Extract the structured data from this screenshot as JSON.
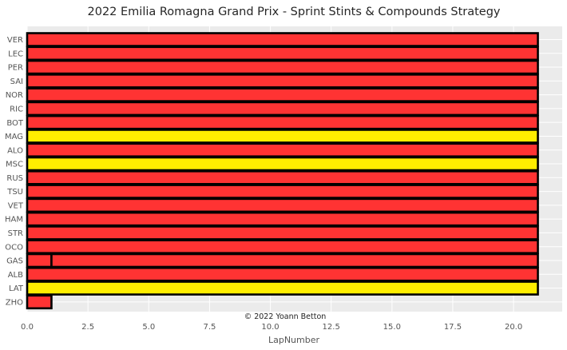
{
  "chart_data": {
    "type": "bar",
    "orientation": "horizontal-stacked",
    "title": "2022 Emilia Romagna Grand Prix - Sprint Stints & Compounds Strategy",
    "xlabel": "LapNumber",
    "ylabel": "",
    "xlim": [
      0,
      22
    ],
    "x_ticks": [
      "0.0",
      "2.5",
      "5.0",
      "7.5",
      "10.0",
      "12.5",
      "15.0",
      "17.5",
      "20.0"
    ],
    "x_tick_values": [
      0,
      2.5,
      5,
      7.5,
      10,
      12.5,
      15,
      17.5,
      20
    ],
    "grid": true,
    "annotation": "© 2022 Yoann Betton",
    "compound_colors": {
      "SOFT": "#ff3333",
      "MEDIUM": "#ffee00"
    },
    "drivers": [
      {
        "driver": "VER",
        "stints": [
          {
            "compound": "SOFT",
            "start": 0,
            "end": 21
          }
        ]
      },
      {
        "driver": "LEC",
        "stints": [
          {
            "compound": "SOFT",
            "start": 0,
            "end": 21
          }
        ]
      },
      {
        "driver": "PER",
        "stints": [
          {
            "compound": "SOFT",
            "start": 0,
            "end": 21
          }
        ]
      },
      {
        "driver": "SAI",
        "stints": [
          {
            "compound": "SOFT",
            "start": 0,
            "end": 21
          }
        ]
      },
      {
        "driver": "NOR",
        "stints": [
          {
            "compound": "SOFT",
            "start": 0,
            "end": 21
          }
        ]
      },
      {
        "driver": "RIC",
        "stints": [
          {
            "compound": "SOFT",
            "start": 0,
            "end": 21
          }
        ]
      },
      {
        "driver": "BOT",
        "stints": [
          {
            "compound": "SOFT",
            "start": 0,
            "end": 21
          }
        ]
      },
      {
        "driver": "MAG",
        "stints": [
          {
            "compound": "MEDIUM",
            "start": 0,
            "end": 21
          }
        ]
      },
      {
        "driver": "ALO",
        "stints": [
          {
            "compound": "SOFT",
            "start": 0,
            "end": 21
          }
        ]
      },
      {
        "driver": "MSC",
        "stints": [
          {
            "compound": "MEDIUM",
            "start": 0,
            "end": 21
          }
        ]
      },
      {
        "driver": "RUS",
        "stints": [
          {
            "compound": "SOFT",
            "start": 0,
            "end": 21
          }
        ]
      },
      {
        "driver": "TSU",
        "stints": [
          {
            "compound": "SOFT",
            "start": 0,
            "end": 21
          }
        ]
      },
      {
        "driver": "VET",
        "stints": [
          {
            "compound": "SOFT",
            "start": 0,
            "end": 21
          }
        ]
      },
      {
        "driver": "HAM",
        "stints": [
          {
            "compound": "SOFT",
            "start": 0,
            "end": 21
          }
        ]
      },
      {
        "driver": "STR",
        "stints": [
          {
            "compound": "SOFT",
            "start": 0,
            "end": 21
          }
        ]
      },
      {
        "driver": "OCO",
        "stints": [
          {
            "compound": "SOFT",
            "start": 0,
            "end": 21
          }
        ]
      },
      {
        "driver": "GAS",
        "stints": [
          {
            "compound": "SOFT",
            "start": 0,
            "end": 1
          },
          {
            "compound": "SOFT",
            "start": 1,
            "end": 21
          }
        ]
      },
      {
        "driver": "ALB",
        "stints": [
          {
            "compound": "SOFT",
            "start": 0,
            "end": 21
          }
        ]
      },
      {
        "driver": "LAT",
        "stints": [
          {
            "compound": "MEDIUM",
            "start": 0,
            "end": 21
          }
        ]
      },
      {
        "driver": "ZHO",
        "stints": [
          {
            "compound": "SOFT",
            "start": 0,
            "end": 1
          }
        ]
      }
    ]
  }
}
